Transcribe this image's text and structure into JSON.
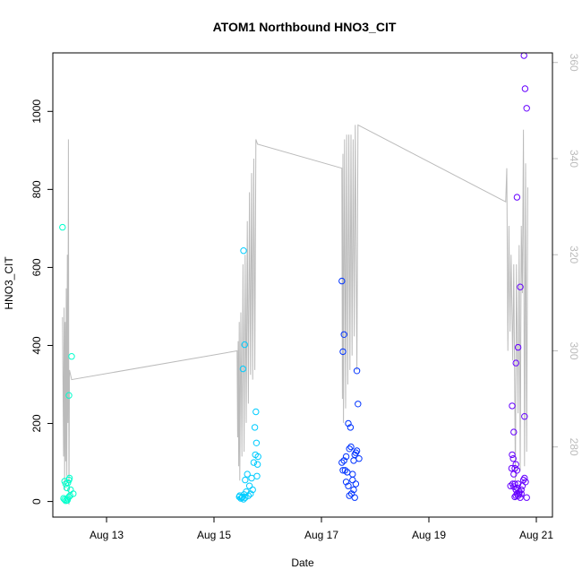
{
  "chart_data": {
    "type": "scatter",
    "title": "ATOM1 Northbound HNO3_CIT",
    "xlabel": "Date",
    "ylabel": "HNO3_CIT",
    "x_unit": "days in August (day-of-month)",
    "xlim": [
      12.0,
      21.3
    ],
    "ylim": [
      -40,
      1150
    ],
    "y2lim": [
      265.4,
      362.0
    ],
    "x_ticks": [
      {
        "value": 13,
        "label": "Aug 13"
      },
      {
        "value": 15,
        "label": "Aug 15"
      },
      {
        "value": 17,
        "label": "Aug 17"
      },
      {
        "value": 19,
        "label": "Aug 19"
      },
      {
        "value": 21,
        "label": "Aug 21"
      }
    ],
    "y_ticks": [
      0,
      200,
      400,
      600,
      800,
      1000
    ],
    "y2_ticks": [
      280,
      300,
      320,
      340,
      360
    ],
    "grid": false,
    "legend": "none",
    "colors": {
      "flight1": "#00FFCC",
      "flight2": "#00CCFF",
      "flight3": "#0033FF",
      "flight4": "#6600FF",
      "line": "#BBBBBB",
      "axis": "#000000",
      "right_axis": "#BBBBBB"
    },
    "series": [
      {
        "color": "#00FFCC",
        "points": [
          [
            12.18,
            703
          ],
          [
            12.22,
            52
          ],
          [
            12.26,
            35
          ],
          [
            12.2,
            8
          ],
          [
            12.22,
            5
          ],
          [
            12.24,
            2
          ],
          [
            12.27,
            3
          ],
          [
            12.24,
            45
          ],
          [
            12.28,
            48
          ],
          [
            12.32,
            15
          ],
          [
            12.28,
            8
          ],
          [
            12.3,
            12
          ],
          [
            12.31,
            60
          ],
          [
            12.33,
            30
          ],
          [
            12.3,
            272
          ],
          [
            12.35,
            372
          ],
          [
            12.38,
            20
          ],
          [
            12.3,
            55
          ],
          [
            12.27,
            4
          ]
        ]
      },
      {
        "color": "#00CCFF",
        "points": [
          [
            15.47,
            12
          ],
          [
            15.48,
            15
          ],
          [
            15.5,
            8
          ],
          [
            15.52,
            10
          ],
          [
            15.53,
            12
          ],
          [
            15.55,
            6
          ],
          [
            15.56,
            18
          ],
          [
            15.58,
            55
          ],
          [
            15.6,
            25
          ],
          [
            15.62,
            70
          ],
          [
            15.64,
            15
          ],
          [
            15.66,
            40
          ],
          [
            15.68,
            20
          ],
          [
            15.7,
            60
          ],
          [
            15.72,
            30
          ],
          [
            15.74,
            100
          ],
          [
            15.76,
            190
          ],
          [
            15.77,
            120
          ],
          [
            15.78,
            230
          ],
          [
            15.79,
            150
          ],
          [
            15.8,
            65
          ],
          [
            15.82,
            115
          ],
          [
            15.81,
            95
          ],
          [
            15.55,
            643
          ],
          [
            15.57,
            402
          ],
          [
            15.54,
            340
          ],
          [
            15.58,
            10
          ]
        ]
      },
      {
        "color": "#0033FF",
        "points": [
          [
            17.38,
            565
          ],
          [
            17.42,
            428
          ],
          [
            17.4,
            384
          ],
          [
            17.38,
            100
          ],
          [
            17.42,
            105
          ],
          [
            17.44,
            80
          ],
          [
            17.46,
            115
          ],
          [
            17.48,
            75
          ],
          [
            17.5,
            200
          ],
          [
            17.52,
            135
          ],
          [
            17.54,
            190
          ],
          [
            17.55,
            140
          ],
          [
            17.58,
            70
          ],
          [
            17.6,
            105
          ],
          [
            17.62,
            120
          ],
          [
            17.64,
            125
          ],
          [
            17.66,
            335
          ],
          [
            17.68,
            250
          ],
          [
            17.46,
            50
          ],
          [
            17.5,
            40
          ],
          [
            17.52,
            15
          ],
          [
            17.56,
            20
          ],
          [
            17.58,
            55
          ],
          [
            17.6,
            30
          ],
          [
            17.62,
            10
          ],
          [
            17.64,
            45
          ],
          [
            17.66,
            130
          ],
          [
            17.7,
            110
          ],
          [
            17.4,
            80
          ]
        ]
      },
      {
        "color": "#6600FF",
        "points": [
          [
            20.77,
            1143
          ],
          [
            20.79,
            1058
          ],
          [
            20.82,
            1008
          ],
          [
            20.64,
            780
          ],
          [
            20.7,
            550
          ],
          [
            20.66,
            395
          ],
          [
            20.62,
            355
          ],
          [
            20.78,
            218
          ],
          [
            20.55,
            245
          ],
          [
            20.58,
            178
          ],
          [
            20.55,
            120
          ],
          [
            20.57,
            110
          ],
          [
            20.6,
            85
          ],
          [
            20.62,
            95
          ],
          [
            20.58,
            70
          ],
          [
            20.64,
            80
          ],
          [
            20.56,
            45
          ],
          [
            20.58,
            38
          ],
          [
            20.6,
            45
          ],
          [
            20.62,
            30
          ],
          [
            20.64,
            20
          ],
          [
            20.66,
            15
          ],
          [
            20.68,
            25
          ],
          [
            20.7,
            10
          ],
          [
            20.72,
            30
          ],
          [
            20.74,
            40
          ],
          [
            20.76,
            55
          ],
          [
            20.8,
            50
          ],
          [
            20.82,
            10
          ],
          [
            20.6,
            12
          ],
          [
            20.68,
            20
          ],
          [
            20.78,
            60
          ],
          [
            20.52,
            40
          ],
          [
            20.54,
            85
          ],
          [
            20.62,
            15
          ],
          [
            20.64,
            35
          ],
          [
            20.72,
            20
          ],
          [
            20.66,
            45
          ]
        ]
      }
    ],
    "line_series": {
      "axis": "right",
      "color": "#BBBBBB",
      "points": [
        [
          12.18,
          307
        ],
        [
          12.2,
          278
        ],
        [
          12.21,
          309
        ],
        [
          12.22,
          271
        ],
        [
          12.23,
          306
        ],
        [
          12.24,
          277
        ],
        [
          12.25,
          313
        ],
        [
          12.26,
          274
        ],
        [
          12.27,
          320
        ],
        [
          12.28,
          285
        ],
        [
          12.29,
          344
        ],
        [
          12.3,
          268
        ],
        [
          12.31,
          296
        ],
        [
          12.35,
          294
        ],
        [
          15.43,
          300
        ],
        [
          15.44,
          282
        ],
        [
          15.45,
          302
        ],
        [
          15.46,
          276
        ],
        [
          15.47,
          306
        ],
        [
          15.48,
          273
        ],
        [
          15.5,
          308
        ],
        [
          15.52,
          278
        ],
        [
          15.54,
          318
        ],
        [
          15.56,
          279
        ],
        [
          15.58,
          320
        ],
        [
          15.6,
          285
        ],
        [
          15.62,
          327
        ],
        [
          15.64,
          289
        ],
        [
          15.66,
          333
        ],
        [
          15.68,
          295
        ],
        [
          15.7,
          337
        ],
        [
          15.72,
          294
        ],
        [
          15.74,
          340
        ],
        [
          15.76,
          296
        ],
        [
          15.78,
          344
        ],
        [
          15.81,
          343
        ],
        [
          17.38,
          338
        ],
        [
          17.39,
          290
        ],
        [
          17.4,
          341
        ],
        [
          17.41,
          285
        ],
        [
          17.43,
          344
        ],
        [
          17.45,
          288
        ],
        [
          17.47,
          345
        ],
        [
          17.49,
          293
        ],
        [
          17.51,
          345
        ],
        [
          17.53,
          296
        ],
        [
          17.55,
          345
        ],
        [
          17.57,
          299
        ],
        [
          17.59,
          344
        ],
        [
          17.61,
          303
        ],
        [
          17.63,
          347
        ],
        [
          17.66,
          296
        ],
        [
          17.68,
          347
        ],
        [
          20.43,
          331
        ],
        [
          20.45,
          338
        ],
        [
          20.47,
          300
        ],
        [
          20.49,
          326
        ],
        [
          20.51,
          304
        ],
        [
          20.53,
          320
        ],
        [
          20.56,
          298
        ],
        [
          20.58,
          318
        ],
        [
          20.61,
          273
        ],
        [
          20.63,
          318
        ],
        [
          20.66,
          287
        ],
        [
          20.68,
          322
        ],
        [
          20.7,
          275
        ],
        [
          20.72,
          326
        ],
        [
          20.74,
          312
        ],
        [
          20.76,
          346
        ],
        [
          20.78,
          276
        ],
        [
          20.8,
          339
        ],
        [
          20.82,
          279
        ],
        [
          20.84,
          334
        ]
      ]
    }
  }
}
